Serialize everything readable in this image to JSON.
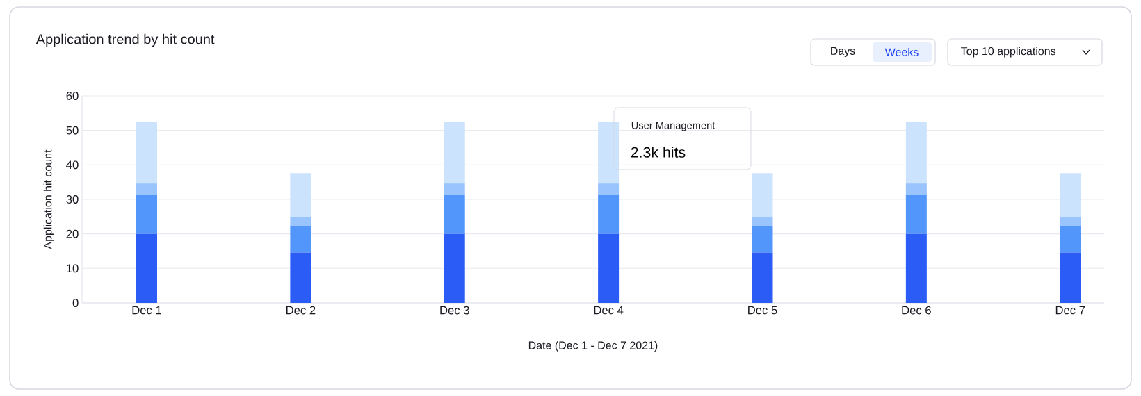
{
  "chart_data": {
    "type": "bar",
    "title": "Application trend by hit count",
    "xlabel": "Date (Dec 1 - Dec 7 2021)",
    "ylabel": "Application hit count",
    "categories": [
      "Dec 1",
      "Dec 2",
      "Dec 3",
      "Dec 4",
      "Dec 5",
      "Dec 6",
      "Dec 7"
    ],
    "stacked": true,
    "series": [
      {
        "color": "#2b5cf5",
        "values": [
          20,
          14.6,
          20,
          20,
          14.6,
          20,
          14.6
        ]
      },
      {
        "color": "#5296fc",
        "values": [
          11.2,
          7.8,
          11.2,
          11.2,
          7.8,
          11.2,
          7.8
        ]
      },
      {
        "color": "#99c4fd",
        "values": [
          3.4,
          2.4,
          3.4,
          3.4,
          2.4,
          3.4,
          2.4
        ]
      },
      {
        "color": "#cce3fd",
        "values": [
          17.9,
          12.8,
          17.9,
          17.9,
          12.8,
          17.9,
          12.8
        ]
      }
    ],
    "ylim": [
      0,
      60
    ],
    "yticks": [
      0,
      10,
      20,
      30,
      40,
      50,
      60
    ],
    "grid": "y",
    "annotations": [
      "Days",
      "Weeks",
      "Top 10 applications",
      "User Management",
      "2.3k hits"
    ]
  }
}
